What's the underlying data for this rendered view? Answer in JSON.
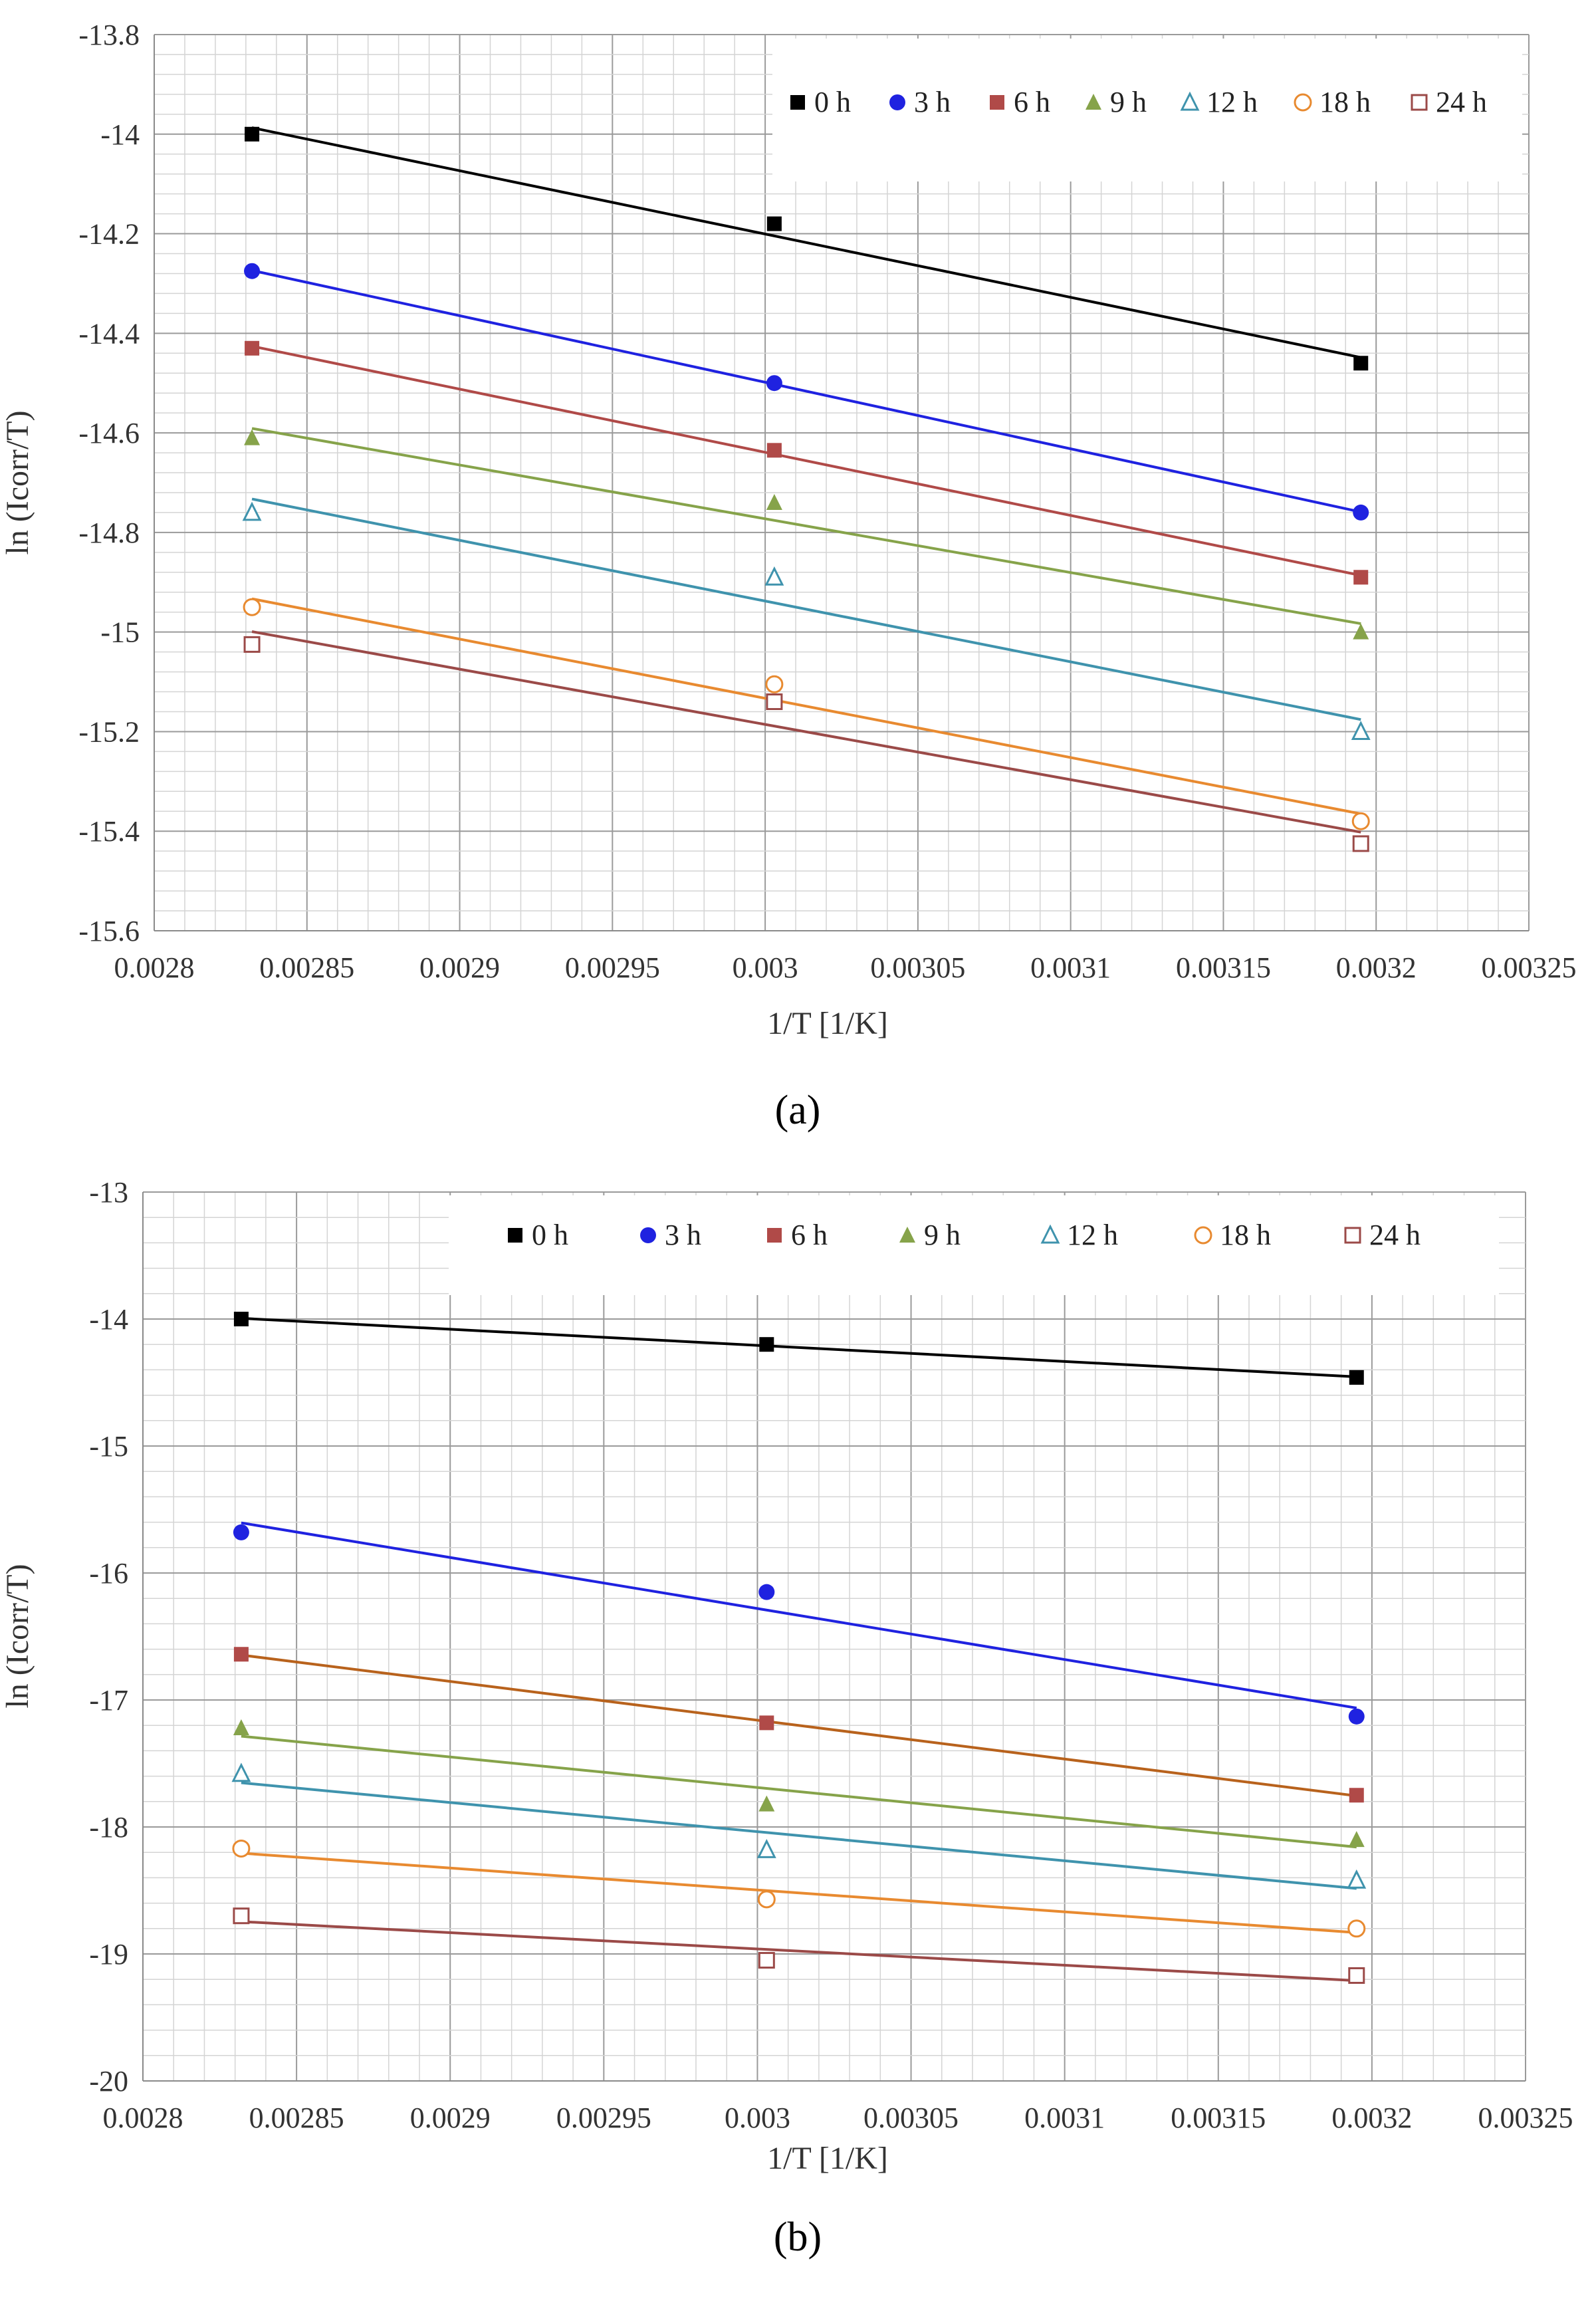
{
  "chart_data": [
    {
      "type": "scatter",
      "panel_label": "(a)",
      "xlabel": "1/T [1/K]",
      "ylabel": "ln (Icorr/T)",
      "xlim": [
        0.0028,
        0.00325
      ],
      "ylim": [
        -15.6,
        -13.8
      ],
      "x_ticks": [
        "0.0028",
        "0.00285",
        "0.0029",
        "0.00295",
        "0.003",
        "0.00305",
        "0.0031",
        "0.00315",
        "0.0032",
        "0.00325"
      ],
      "y_ticks": [
        "-13.8",
        "-14",
        "-14.2",
        "-14.4",
        "-14.6",
        "-14.8",
        "-15",
        "-15.2",
        "-15.4",
        "-15.6"
      ],
      "grid": true,
      "legend_position": "top-right",
      "trendlines": "linear",
      "x": [
        0.002832,
        0.003003,
        0.003195
      ],
      "series": [
        {
          "name": "0 h",
          "marker": "square-filled",
          "color": "#000000",
          "values": [
            -14.0,
            -14.18,
            -14.46
          ]
        },
        {
          "name": "3 h",
          "marker": "circle-filled",
          "color": "#1f22e0",
          "values": [
            -14.275,
            -14.5,
            -14.76
          ]
        },
        {
          "name": "6 h",
          "marker": "square-filled",
          "color": "#b04a48",
          "values": [
            -14.43,
            -14.635,
            -14.89
          ]
        },
        {
          "name": "9 h",
          "marker": "triangle-filled",
          "color": "#86a34a",
          "values": [
            -14.61,
            -14.74,
            -15.0
          ]
        },
        {
          "name": "12 h",
          "marker": "triangle-open",
          "color": "#3f93ad",
          "values": [
            -14.76,
            -14.89,
            -15.2
          ]
        },
        {
          "name": "18 h",
          "marker": "circle-open",
          "color": "#e88a30",
          "values": [
            -14.95,
            -15.105,
            -15.38
          ]
        },
        {
          "name": "24 h",
          "marker": "square-open",
          "color": "#9b4a48",
          "values": [
            -15.025,
            -15.14,
            -15.425
          ]
        }
      ]
    },
    {
      "type": "scatter",
      "panel_label": "(b)",
      "xlabel": "1/T [1/K]",
      "ylabel": "ln (Icorr/T)",
      "xlim": [
        0.0028,
        0.00325
      ],
      "ylim": [
        -20,
        -13
      ],
      "x_ticks": [
        "0.0028",
        "0.00285",
        "0.0029",
        "0.00295",
        "0.003",
        "0.00305",
        "0.0031",
        "0.00315",
        "0.0032",
        "0.00325"
      ],
      "y_ticks": [
        "-13",
        "-14",
        "-15",
        "-16",
        "-17",
        "-18",
        "-19",
        "-20"
      ],
      "grid": true,
      "legend_position": "top-right",
      "trendlines": "linear",
      "x": [
        0.002832,
        0.003003,
        0.003195
      ],
      "series": [
        {
          "name": "0 h",
          "marker": "square-filled",
          "color": "#000000",
          "values": [
            -14.0,
            -14.2,
            -14.46
          ]
        },
        {
          "name": "3 h",
          "marker": "circle-filled",
          "color": "#1f22e0",
          "values": [
            -15.68,
            -16.15,
            -17.13
          ]
        },
        {
          "name": "6 h",
          "marker": "square-filled",
          "color": "#b04a48",
          "line_color": "#b8621c",
          "values": [
            -16.64,
            -17.18,
            -17.75
          ]
        },
        {
          "name": "9 h",
          "marker": "triangle-filled",
          "color": "#86a34a",
          "values": [
            -17.22,
            -17.82,
            -18.1
          ]
        },
        {
          "name": "12 h",
          "marker": "triangle-open",
          "color": "#3f93ad",
          "values": [
            -17.58,
            -18.18,
            -18.42
          ]
        },
        {
          "name": "18 h",
          "marker": "circle-open",
          "color": "#e88a30",
          "values": [
            -18.17,
            -18.57,
            -18.8
          ]
        },
        {
          "name": "24 h",
          "marker": "square-open",
          "color": "#9b4a48",
          "values": [
            -18.7,
            -19.05,
            -19.17
          ]
        }
      ]
    }
  ]
}
